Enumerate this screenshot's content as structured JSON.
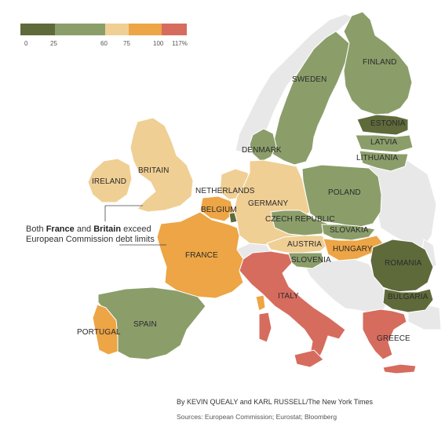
{
  "legend": {
    "colors": [
      "#5f6a3b",
      "#8b9e6a",
      "#f0cf94",
      "#eda545",
      "#d66c5e"
    ],
    "ticks": [
      "0",
      "25",
      "60",
      "75",
      "100",
      "117%"
    ]
  },
  "countries": {
    "sweden": {
      "label": "SWEDEN",
      "color": "#8b9e6a"
    },
    "finland": {
      "label": "FINLAND",
      "color": "#8b9e6a"
    },
    "estonia": {
      "label": "ESTONIA",
      "color": "#5f6a3b"
    },
    "latvia": {
      "label": "LATVIA",
      "color": "#8b9e6a"
    },
    "lithuania": {
      "label": "LITHUANIA",
      "color": "#8b9e6a"
    },
    "denmark": {
      "label": "DENMARK",
      "color": "#8b9e6a"
    },
    "britain": {
      "label": "BRITAIN",
      "color": "#f0cf94"
    },
    "ireland": {
      "label": "IRELAND",
      "color": "#f0cf94"
    },
    "netherlands": {
      "label": "NETHERLANDS",
      "color": "#f0cf94"
    },
    "belgium": {
      "label": "BELGIUM",
      "color": "#eda545"
    },
    "germany": {
      "label": "GERMANY",
      "color": "#f0cf94"
    },
    "poland": {
      "label": "POLAND",
      "color": "#8b9e6a"
    },
    "czech": {
      "label": "CZECH REPUBLIC",
      "color": "#8b9e6a"
    },
    "slovakia": {
      "label": "SLOVAKIA",
      "color": "#8b9e6a"
    },
    "austria": {
      "label": "AUSTRIA",
      "color": "#f0cf94"
    },
    "hungary": {
      "label": "HUNGARY",
      "color": "#eda545"
    },
    "slovenia": {
      "label": "SLOVENIA",
      "color": "#8b9e6a"
    },
    "france": {
      "label": "FRANCE",
      "color": "#eda545"
    },
    "italy": {
      "label": "ITALY",
      "color": "#d66c5e"
    },
    "romania": {
      "label": "ROMANIA",
      "color": "#5f6a3b"
    },
    "bulgaria": {
      "label": "BULGARIA",
      "color": "#5f6a3b"
    },
    "spain": {
      "label": "SPAIN",
      "color": "#8b9e6a"
    },
    "portugal": {
      "label": "PORTUGAL",
      "color": "#eda545"
    },
    "greece": {
      "label": "GREECE",
      "color": "#d66c5e"
    },
    "luxembourg": {
      "color": "#5f6a3b"
    },
    "non_eu": {
      "color": "#e8e8e8"
    }
  },
  "callout": {
    "prefix": "Both ",
    "country1": "France",
    "mid": " and ",
    "country2": "Britain",
    "suffix": " exceed European Commission debt limits"
  },
  "byline": "By KEVIN QUEALY and KARL RUSSELL/The New York Times",
  "sources": "Sources: European Commission; Eurostat; Bloomberg"
}
